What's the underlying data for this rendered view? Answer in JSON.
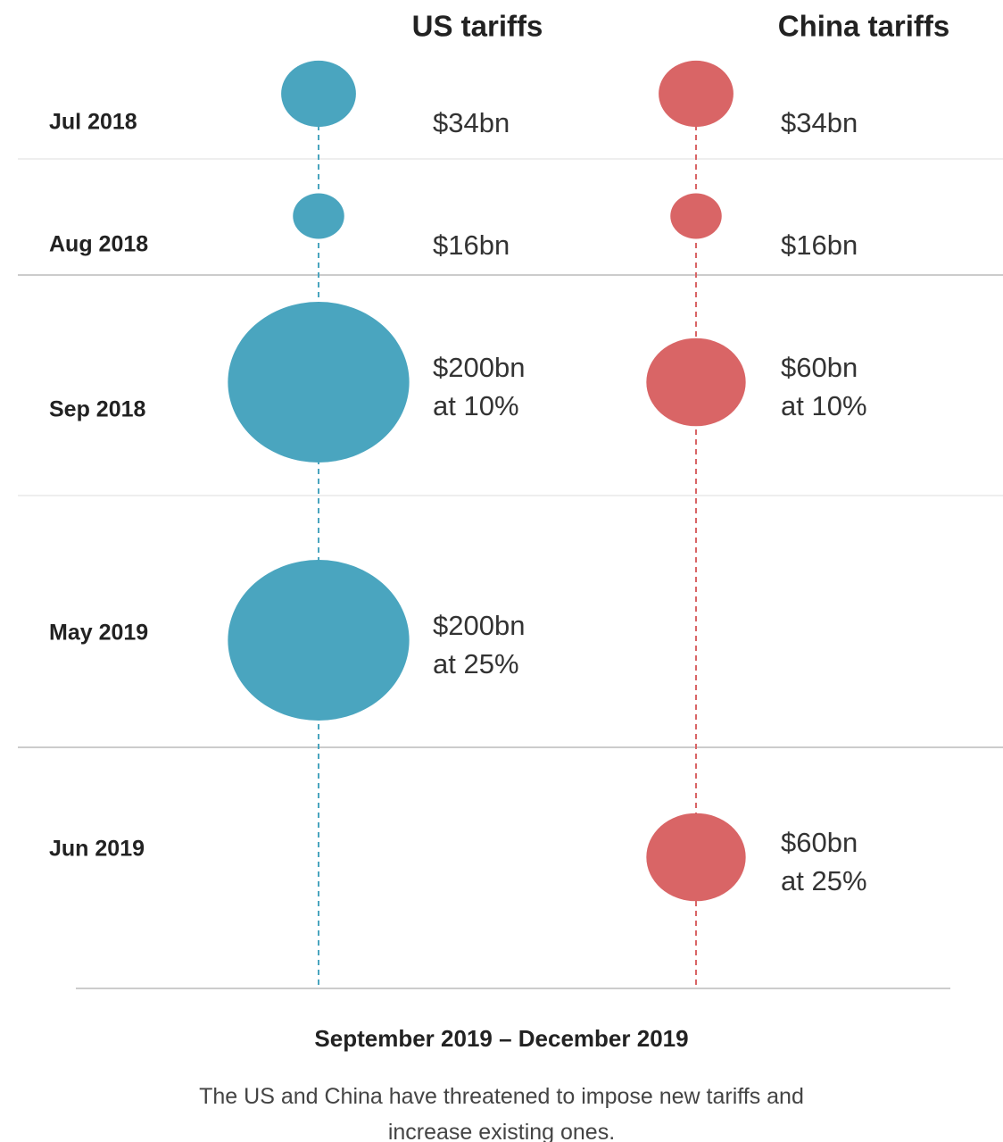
{
  "chart_data": {
    "type": "bubble",
    "categories": [
      "Jul 2018",
      "Aug 2018",
      "Sep 2018",
      "May 2019",
      "Jun 2019"
    ],
    "series": [
      {
        "name": "US tariffs",
        "color": "#4aa5bf",
        "values": [
          34,
          16,
          200,
          200,
          null
        ],
        "value_labels": [
          [
            "$34bn"
          ],
          [
            "$16bn"
          ],
          [
            "$200bn",
            "at 10%"
          ],
          [
            "$200bn",
            "at 25%"
          ],
          null
        ]
      },
      {
        "name": "China tariffs",
        "color": "#d96566",
        "values": [
          34,
          16,
          60,
          null,
          60
        ],
        "value_labels": [
          [
            "$34bn"
          ],
          [
            "$16bn"
          ],
          [
            "$60bn",
            "at 10%"
          ],
          null,
          [
            "$60bn",
            "at 25%"
          ]
        ]
      }
    ],
    "footer_title": "September 2019 – December 2019",
    "note": "The US and China have threatened to impose new tariffs and increase existing ones."
  }
}
